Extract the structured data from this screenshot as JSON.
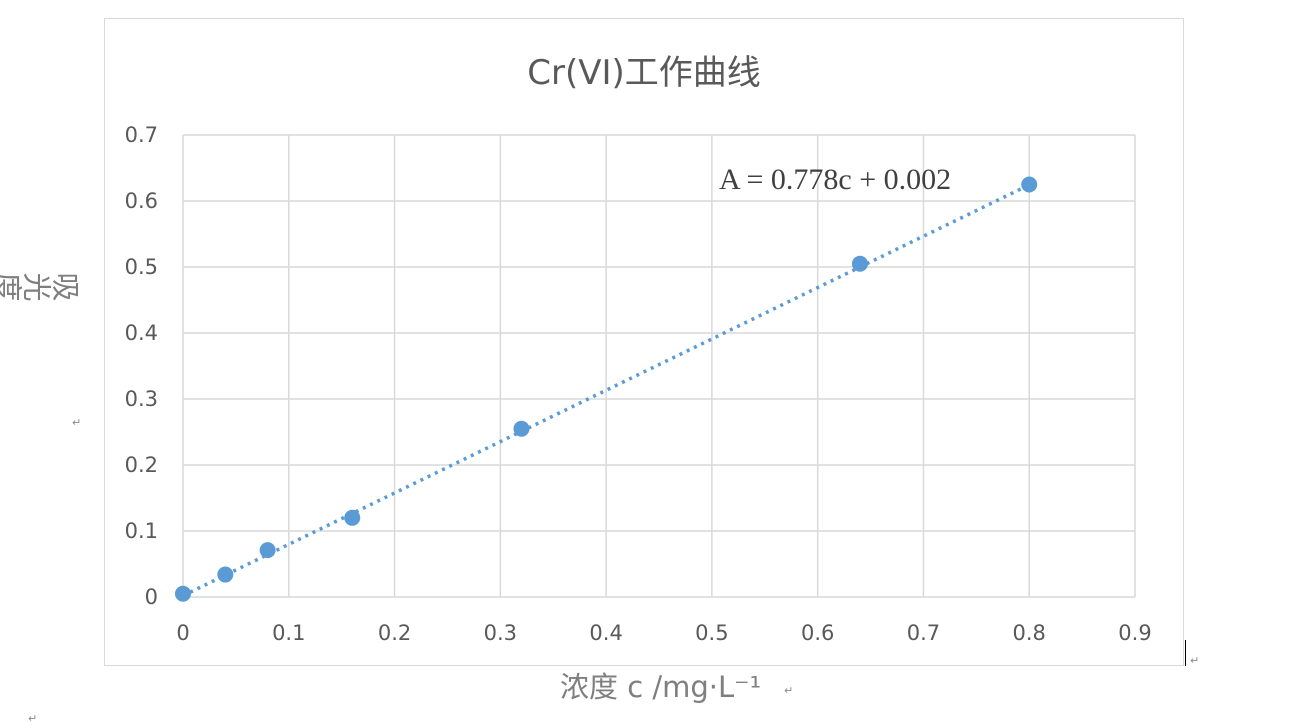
{
  "chart_data": {
    "type": "scatter",
    "title": "Cr(VI)工作曲线",
    "xlabel": "浓度 c /mg·L⁻¹",
    "ylabel": "吸光度 A",
    "xlim": [
      0,
      0.9
    ],
    "ylim": [
      0,
      0.7
    ],
    "x_ticks": [
      "0",
      "0.1",
      "0.2",
      "0.3",
      "0.4",
      "0.5",
      "0.6",
      "0.7",
      "0.8",
      "0.9"
    ],
    "y_ticks": [
      "0",
      "0.1",
      "0.2",
      "0.3",
      "0.4",
      "0.5",
      "0.6",
      "0.7"
    ],
    "grid": true,
    "series": [
      {
        "color": "#5b9bd5",
        "x": [
          0,
          0.04,
          0.08,
          0.16,
          0.32,
          0.64,
          0.8
        ],
        "y": [
          0.005,
          0.034,
          0.071,
          0.12,
          0.255,
          0.505,
          0.625
        ]
      }
    ],
    "trendline": {
      "type": "linear",
      "slope": 0.778,
      "intercept": 0.002,
      "style": "dotted",
      "color": "#5b9bd5"
    },
    "annotations": [
      {
        "text": "A = 0.778c + 0.002"
      }
    ]
  },
  "colors": {
    "grid": "#d9d9d9",
    "axis_text": "#595959",
    "marker": "#5b9bd5"
  },
  "marks": {
    "paragraph_mark": "↵"
  }
}
